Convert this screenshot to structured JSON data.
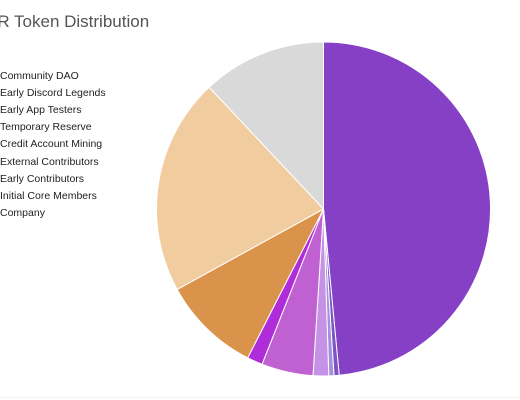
{
  "chart_data": {
    "type": "pie",
    "title": "AR Token Distribution",
    "legend_position": "left",
    "start_angle_deg": 0,
    "direction": "clockwise",
    "slices": [
      {
        "label": "Community DAO",
        "value": 48.5,
        "color": "#8540c6"
      },
      {
        "label": "Early Discord Legends",
        "value": 0.5,
        "color": "#7a56c4"
      },
      {
        "label": "Early App Testers",
        "value": 0.5,
        "color": "#a78fe0"
      },
      {
        "label": "Temporary Reserve",
        "value": 1.5,
        "color": "#c592e6"
      },
      {
        "label": "Credit Account Mining",
        "value": 5.0,
        "color": "#c061d1"
      },
      {
        "label": "External Contributors",
        "value": 1.5,
        "color": "#b02cd9"
      },
      {
        "label": "Early Contributors",
        "value": 9.5,
        "color": "#d9934a"
      },
      {
        "label": "Initial Core Members",
        "value": 21.0,
        "color": "#f1cc9f"
      },
      {
        "label": "Company",
        "value": 12.0,
        "color": "#d9d9d9"
      }
    ]
  }
}
